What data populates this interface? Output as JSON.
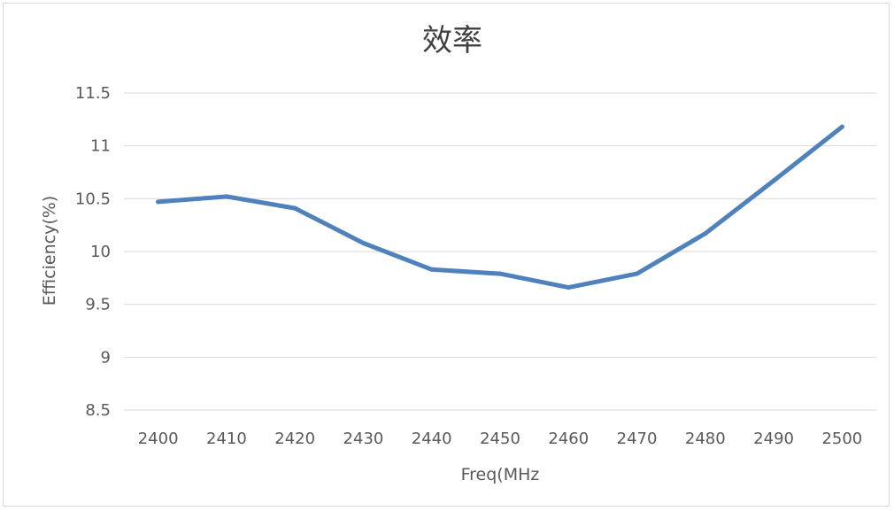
{
  "chart_data": {
    "type": "line",
    "title": "效率",
    "xlabel": "Freq(MHz",
    "ylabel": "Efficiency(%)",
    "x": [
      2400,
      2410,
      2420,
      2430,
      2440,
      2450,
      2460,
      2470,
      2480,
      2490,
      2500
    ],
    "x_tick_labels": [
      "2400",
      "2410",
      "2420",
      "2430",
      "2440",
      "2450",
      "2460",
      "2470",
      "2480",
      "2490",
      "2500"
    ],
    "y_ticks": [
      8.5,
      9,
      9.5,
      10,
      10.5,
      11,
      11.5
    ],
    "y_tick_labels": [
      "8.5",
      "9",
      "9.5",
      "10",
      "10.5",
      "11",
      "11.5"
    ],
    "ylim": [
      8.5,
      11.5
    ],
    "grid": true,
    "series": [
      {
        "values": [
          10.47,
          10.52,
          10.41,
          10.08,
          9.83,
          9.79,
          9.66,
          9.79,
          10.17,
          10.67,
          11.18
        ],
        "color": "#4f81bd"
      }
    ]
  }
}
